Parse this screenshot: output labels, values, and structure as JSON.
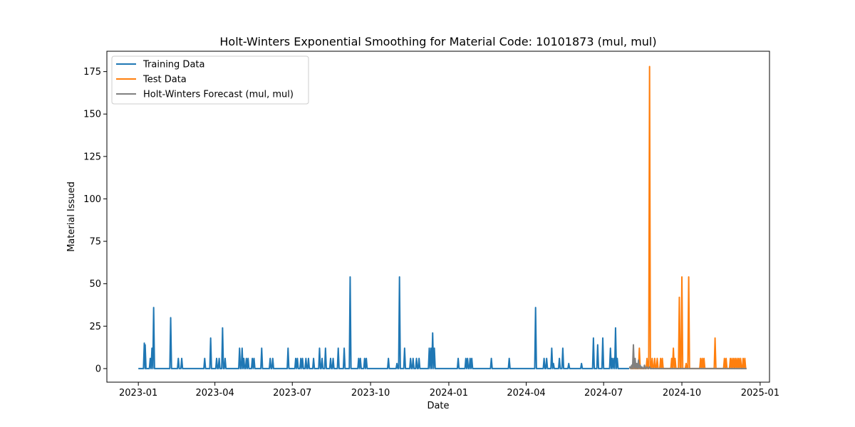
{
  "chart_data": {
    "type": "line",
    "title": "Holt-Winters Exponential Smoothing for Material Code: 10101873 (mul, mul)",
    "xlabel": "Date",
    "ylabel": "Material Issued",
    "xlim": [
      "2022-11-25",
      "2025-01-12"
    ],
    "ylim": [
      -8,
      187
    ],
    "x_ticks": [
      "2023-01",
      "2023-04",
      "2023-07",
      "2023-10",
      "2024-01",
      "2024-04",
      "2024-07",
      "2024-10",
      "2025-01"
    ],
    "y_ticks": [
      0,
      25,
      50,
      75,
      100,
      125,
      150,
      175
    ],
    "legend": {
      "position": "top-left"
    },
    "grid": false,
    "series": [
      {
        "name": "Training Data",
        "color": "#1f77b4",
        "start": "2023-01-01",
        "end": "2024-07-31",
        "baseline": 0,
        "spikes": [
          [
            "2023-01-08",
            15
          ],
          [
            "2023-01-09",
            14
          ],
          [
            "2023-01-15",
            6
          ],
          [
            "2023-01-17",
            12
          ],
          [
            "2023-01-19",
            36
          ],
          [
            "2023-02-08",
            30
          ],
          [
            "2023-02-17",
            6
          ],
          [
            "2023-02-21",
            6
          ],
          [
            "2023-03-20",
            6
          ],
          [
            "2023-03-27",
            18
          ],
          [
            "2023-04-03",
            6
          ],
          [
            "2023-04-06",
            6
          ],
          [
            "2023-04-10",
            24
          ],
          [
            "2023-04-13",
            6
          ],
          [
            "2023-04-30",
            12
          ],
          [
            "2023-05-03",
            12
          ],
          [
            "2023-05-05",
            6
          ],
          [
            "2023-05-08",
            6
          ],
          [
            "2023-05-10",
            6
          ],
          [
            "2023-05-15",
            6
          ],
          [
            "2023-05-17",
            6
          ],
          [
            "2023-05-26",
            12
          ],
          [
            "2023-06-05",
            6
          ],
          [
            "2023-06-08",
            6
          ],
          [
            "2023-06-26",
            12
          ],
          [
            "2023-07-05",
            6
          ],
          [
            "2023-07-07",
            6
          ],
          [
            "2023-07-11",
            6
          ],
          [
            "2023-07-13",
            6
          ],
          [
            "2023-07-17",
            6
          ],
          [
            "2023-07-20",
            6
          ],
          [
            "2023-07-26",
            6
          ],
          [
            "2023-08-02",
            12
          ],
          [
            "2023-08-05",
            6
          ],
          [
            "2023-08-09",
            12
          ],
          [
            "2023-08-15",
            6
          ],
          [
            "2023-08-18",
            6
          ],
          [
            "2023-08-24",
            12
          ],
          [
            "2023-08-31",
            12
          ],
          [
            "2023-09-07",
            54
          ],
          [
            "2023-09-17",
            6
          ],
          [
            "2023-09-19",
            6
          ],
          [
            "2023-09-24",
            6
          ],
          [
            "2023-09-26",
            6
          ],
          [
            "2023-10-22",
            6
          ],
          [
            "2023-11-01",
            3
          ],
          [
            "2023-11-04",
            54
          ],
          [
            "2023-11-10",
            12
          ],
          [
            "2023-11-17",
            6
          ],
          [
            "2023-11-20",
            6
          ],
          [
            "2023-11-24",
            6
          ],
          [
            "2023-11-27",
            6
          ],
          [
            "2023-12-09",
            12
          ],
          [
            "2023-12-11",
            12
          ],
          [
            "2023-12-13",
            21
          ],
          [
            "2023-12-15",
            12
          ],
          [
            "2024-01-12",
            6
          ],
          [
            "2024-01-21",
            6
          ],
          [
            "2024-01-23",
            6
          ],
          [
            "2024-01-26",
            6
          ],
          [
            "2024-01-28",
            6
          ],
          [
            "2024-02-20",
            6
          ],
          [
            "2024-03-12",
            6
          ],
          [
            "2024-04-12",
            36
          ],
          [
            "2024-04-22",
            6
          ],
          [
            "2024-04-25",
            6
          ],
          [
            "2024-05-01",
            12
          ],
          [
            "2024-05-03",
            3
          ],
          [
            "2024-05-10",
            6
          ],
          [
            "2024-05-14",
            12
          ],
          [
            "2024-05-21",
            3
          ],
          [
            "2024-06-05",
            3
          ],
          [
            "2024-06-19",
            18
          ],
          [
            "2024-06-24",
            14
          ],
          [
            "2024-06-30",
            18
          ],
          [
            "2024-07-09",
            12
          ],
          [
            "2024-07-11",
            6
          ],
          [
            "2024-07-13",
            6
          ],
          [
            "2024-07-15",
            24
          ],
          [
            "2024-07-17",
            6
          ]
        ]
      },
      {
        "name": "Test Data",
        "color": "#ff7f0e",
        "start": "2024-08-01",
        "end": "2024-12-16",
        "baseline": 0,
        "spikes": [
          [
            "2024-08-01",
            1
          ],
          [
            "2024-08-04",
            2
          ],
          [
            "2024-08-06",
            3
          ],
          [
            "2024-08-12",
            12
          ],
          [
            "2024-08-21",
            6
          ],
          [
            "2024-08-24",
            178
          ],
          [
            "2024-08-27",
            6
          ],
          [
            "2024-08-30",
            6
          ],
          [
            "2024-09-02",
            6
          ],
          [
            "2024-09-06",
            6
          ],
          [
            "2024-09-08",
            6
          ],
          [
            "2024-09-19",
            6
          ],
          [
            "2024-09-21",
            12
          ],
          [
            "2024-09-23",
            6
          ],
          [
            "2024-09-28",
            42
          ],
          [
            "2024-10-01",
            54
          ],
          [
            "2024-10-06",
            3
          ],
          [
            "2024-10-09",
            54
          ],
          [
            "2024-10-23",
            6
          ],
          [
            "2024-10-25",
            6
          ],
          [
            "2024-10-27",
            6
          ],
          [
            "2024-11-09",
            18
          ],
          [
            "2024-11-20",
            6
          ],
          [
            "2024-11-22",
            6
          ],
          [
            "2024-11-27",
            6
          ],
          [
            "2024-11-29",
            6
          ],
          [
            "2024-12-01",
            6
          ],
          [
            "2024-12-03",
            6
          ],
          [
            "2024-12-05",
            6
          ],
          [
            "2024-12-07",
            6
          ],
          [
            "2024-12-09",
            6
          ],
          [
            "2024-12-12",
            6
          ],
          [
            "2024-12-14",
            6
          ]
        ]
      },
      {
        "name": "Holt-Winters Forecast (mul, mul)",
        "color": "#808080",
        "start": "2024-08-01",
        "end": "2024-12-16",
        "baseline": 0,
        "spikes": [
          [
            "2024-08-01",
            1
          ],
          [
            "2024-08-03",
            2
          ],
          [
            "2024-08-05",
            14
          ],
          [
            "2024-08-07",
            6
          ],
          [
            "2024-08-09",
            3
          ],
          [
            "2024-08-11",
            5
          ],
          [
            "2024-08-13",
            2
          ],
          [
            "2024-08-15",
            1
          ],
          [
            "2024-08-18",
            2
          ],
          [
            "2024-08-21",
            1
          ],
          [
            "2024-08-24",
            1
          ]
        ]
      }
    ]
  }
}
